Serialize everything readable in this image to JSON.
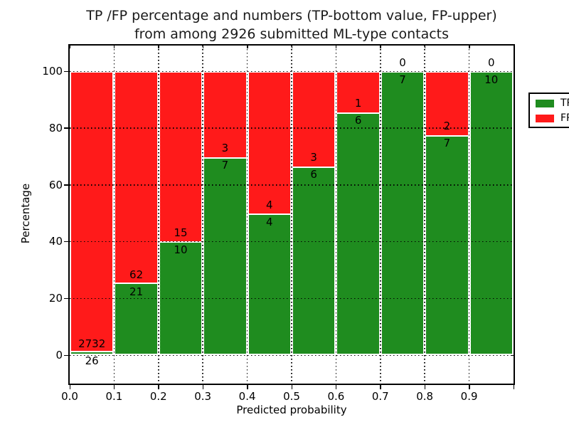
{
  "title": {
    "line1": "TP /FP percentage and numbers (TP-bottom value, FP-upper)",
    "line2": "from among 2926 submitted ML-type contacts"
  },
  "axes": {
    "x_label": "Predicted probability",
    "y_label": "Percentage",
    "x_tick_labels": [
      "0.0",
      "0.1",
      "0.2",
      "0.3",
      "0.4",
      "0.5",
      "0.6",
      "0.7",
      "0.8",
      "0.9"
    ],
    "y_tick_labels": [
      "0",
      "20",
      "40",
      "60",
      "80",
      "100"
    ]
  },
  "legend": {
    "items": [
      {
        "label": "TP",
        "color": "#1f8c1f"
      },
      {
        "label": "FP",
        "color": "#ff1a1a"
      }
    ]
  },
  "colors": {
    "tp_green": "#1f8c1f",
    "fp_red": "#ff1a1a",
    "grid": "#000000",
    "background": "#ffffff"
  },
  "chart_data": {
    "type": "bar",
    "stacked": true,
    "normalized": "each bar shows TP/FP split as percent of bin total; numeric labels are raw counts (TP below boundary, FP above)",
    "title": "TP /FP percentage and numbers (TP-bottom value, FP-upper) from among 2926 submitted ML-type contacts",
    "xlabel": "Predicted probability",
    "ylabel": "Percentage",
    "xlim": [
      0.0,
      1.0
    ],
    "ylim": [
      -10,
      109
    ],
    "y_ticks": [
      0,
      20,
      40,
      60,
      80,
      100
    ],
    "bin_width": 0.1,
    "bin_starts": [
      0.0,
      0.1,
      0.2,
      0.3,
      0.4,
      0.5,
      0.6,
      0.7,
      0.8,
      0.9
    ],
    "grid": "dotted black, drawn above bars",
    "legend_position": "upper right",
    "total_contacts": 2926,
    "series": [
      {
        "name": "TP",
        "color": "#1f8c1f",
        "counts": [
          26,
          21,
          10,
          7,
          4,
          6,
          6,
          7,
          7,
          10
        ]
      },
      {
        "name": "FP",
        "color": "#ff1a1a",
        "counts": [
          2732,
          62,
          15,
          3,
          4,
          3,
          1,
          0,
          2,
          0
        ]
      }
    ],
    "tp_percent": [
      0.94,
      25.3,
      40.0,
      70.0,
      50.0,
      66.7,
      85.7,
      100.0,
      77.8,
      100.0
    ]
  }
}
